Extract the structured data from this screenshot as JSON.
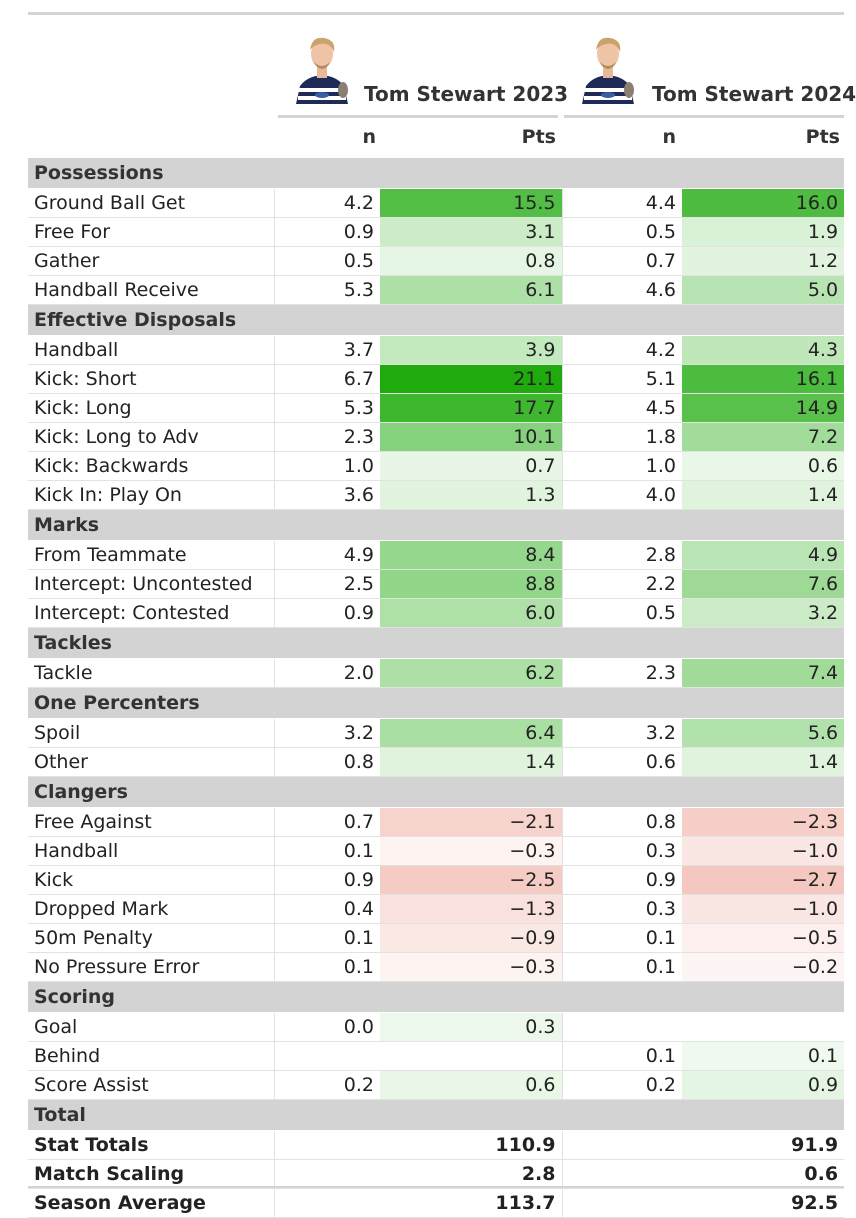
{
  "players": [
    {
      "name": "Tom Stewart 2023",
      "avatar_icon": "player-headshot-icon"
    },
    {
      "name": "Tom Stewart 2024",
      "avatar_icon": "player-headshot-icon"
    }
  ],
  "columns": {
    "n": "n",
    "pts": "Pts"
  },
  "colors": {
    "category_bg": "#d3d3d3",
    "positive_max": "#1fab0e",
    "negative_max": "#f4c8c0"
  },
  "sections": [
    {
      "title": "Possessions",
      "rows": [
        {
          "label": "Ground Ball Get",
          "n1": "4.2",
          "p1": "15.5",
          "n2": "4.4",
          "p2": "16.0"
        },
        {
          "label": "Free For",
          "n1": "0.9",
          "p1": "3.1",
          "n2": "0.5",
          "p2": "1.9"
        },
        {
          "label": "Gather",
          "n1": "0.5",
          "p1": "0.8",
          "n2": "0.7",
          "p2": "1.2"
        },
        {
          "label": "Handball Receive",
          "n1": "5.3",
          "p1": "6.1",
          "n2": "4.6",
          "p2": "5.0"
        }
      ]
    },
    {
      "title": "Effective Disposals",
      "rows": [
        {
          "label": "Handball",
          "n1": "3.7",
          "p1": "3.9",
          "n2": "4.2",
          "p2": "4.3"
        },
        {
          "label": "Kick: Short",
          "n1": "6.7",
          "p1": "21.1",
          "n2": "5.1",
          "p2": "16.1"
        },
        {
          "label": "Kick: Long",
          "n1": "5.3",
          "p1": "17.7",
          "n2": "4.5",
          "p2": "14.9"
        },
        {
          "label": "Kick: Long to Adv",
          "n1": "2.3",
          "p1": "10.1",
          "n2": "1.8",
          "p2": "7.2"
        },
        {
          "label": "Kick: Backwards",
          "n1": "1.0",
          "p1": "0.7",
          "n2": "1.0",
          "p2": "0.6"
        },
        {
          "label": "Kick In: Play On",
          "n1": "3.6",
          "p1": "1.3",
          "n2": "4.0",
          "p2": "1.4"
        }
      ]
    },
    {
      "title": "Marks",
      "rows": [
        {
          "label": "From Teammate",
          "n1": "4.9",
          "p1": "8.4",
          "n2": "2.8",
          "p2": "4.9"
        },
        {
          "label": "Intercept: Uncontested",
          "n1": "2.5",
          "p1": "8.8",
          "n2": "2.2",
          "p2": "7.6"
        },
        {
          "label": "Intercept: Contested",
          "n1": "0.9",
          "p1": "6.0",
          "n2": "0.5",
          "p2": "3.2"
        }
      ]
    },
    {
      "title": "Tackles",
      "rows": [
        {
          "label": "Tackle",
          "n1": "2.0",
          "p1": "6.2",
          "n2": "2.3",
          "p2": "7.4"
        }
      ]
    },
    {
      "title": "One Percenters",
      "rows": [
        {
          "label": "Spoil",
          "n1": "3.2",
          "p1": "6.4",
          "n2": "3.2",
          "p2": "5.6"
        },
        {
          "label": "Other",
          "n1": "0.8",
          "p1": "1.4",
          "n2": "0.6",
          "p2": "1.4"
        }
      ]
    },
    {
      "title": "Clangers",
      "rows": [
        {
          "label": "Free Against",
          "n1": "0.7",
          "p1": "−2.1",
          "n2": "0.8",
          "p2": "−2.3"
        },
        {
          "label": "Handball",
          "n1": "0.1",
          "p1": "−0.3",
          "n2": "0.3",
          "p2": "−1.0"
        },
        {
          "label": "Kick",
          "n1": "0.9",
          "p1": "−2.5",
          "n2": "0.9",
          "p2": "−2.7"
        },
        {
          "label": "Dropped Mark",
          "n1": "0.4",
          "p1": "−1.3",
          "n2": "0.3",
          "p2": "−1.0"
        },
        {
          "label": "50m Penalty",
          "n1": "0.1",
          "p1": "−0.9",
          "n2": "0.1",
          "p2": "−0.5"
        },
        {
          "label": "No Pressure Error",
          "n1": "0.1",
          "p1": "−0.3",
          "n2": "0.1",
          "p2": "−0.2"
        }
      ]
    },
    {
      "title": "Scoring",
      "rows": [
        {
          "label": "Goal",
          "n1": "0.0",
          "p1": "0.3",
          "n2": "",
          "p2": ""
        },
        {
          "label": "Behind",
          "n1": "",
          "p1": "",
          "n2": "0.1",
          "p2": "0.1"
        },
        {
          "label": "Score Assist",
          "n1": "0.2",
          "p1": "0.6",
          "n2": "0.2",
          "p2": "0.9"
        }
      ]
    },
    {
      "title": "Total",
      "total": true,
      "rows": [
        {
          "label": "Stat Totals",
          "n1": "",
          "p1": "110.9",
          "n2": "",
          "p2": "91.9"
        },
        {
          "label": "Match Scaling",
          "n1": "",
          "p1": "2.8",
          "n2": "",
          "p2": "0.6"
        },
        {
          "label": "Season Average",
          "n1": "",
          "p1": "113.7",
          "n2": "",
          "p2": "92.5"
        }
      ]
    }
  ]
}
